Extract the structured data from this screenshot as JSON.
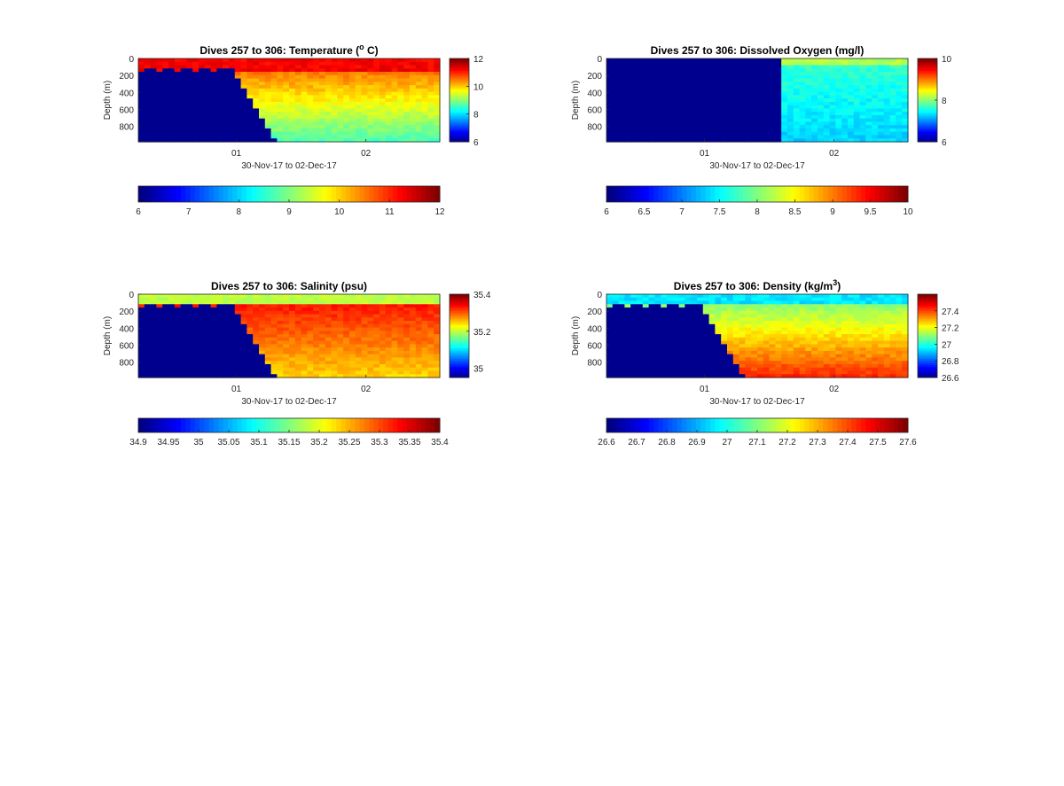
{
  "chart_data": [
    {
      "type": "heatmap",
      "title": "Dives 257 to 306: Temperature (",
      "title_sup": "o",
      "title_suffix": " C)",
      "xlabel": "30-Nov-17 to 02-Dec-17",
      "ylabel": "Depth (m)",
      "x_ticks": [
        "01",
        "02"
      ],
      "y_ticks": [
        0,
        200,
        400,
        600,
        800
      ],
      "ylim": [
        0,
        980
      ],
      "colormap": "jet",
      "side_colorbar": {
        "range": [
          6,
          12
        ],
        "ticks": [
          6,
          8,
          10,
          12
        ]
      },
      "bottom_colorbar": {
        "range": [
          6,
          12
        ],
        "ticks": [
          "6",
          "7",
          "8",
          "9",
          "10",
          "11",
          "12"
        ]
      },
      "field": {
        "surface": 11.3,
        "subsurface": 10.6,
        "deep": 8.6,
        "surface_depth": 120,
        "no_data_mask": "left"
      }
    },
    {
      "type": "heatmap",
      "title": "Dives 257 to 306: Dissolved Oxygen (mg/l)",
      "xlabel": "30-Nov-17 to 02-Dec-17",
      "ylabel": "Depth (m)",
      "x_ticks": [
        "01",
        "02"
      ],
      "y_ticks": [
        0,
        200,
        400,
        600,
        800
      ],
      "ylim": [
        0,
        980
      ],
      "colormap": "jet",
      "side_colorbar": {
        "range": [
          6,
          10
        ],
        "ticks": [
          6,
          8,
          10
        ]
      },
      "bottom_colorbar": {
        "range": [
          6,
          10
        ],
        "ticks": [
          "6",
          "6.5",
          "7",
          "7.5",
          "8",
          "8.5",
          "9",
          "9.5",
          "10"
        ]
      },
      "field": {
        "surface": 8.2,
        "subsurface": 7.7,
        "deep": 7.3,
        "surface_depth": 60,
        "no_data_mask": "half"
      }
    },
    {
      "type": "heatmap",
      "title": "Dives 257 to 306: Salinity (psu)",
      "xlabel": "30-Nov-17 to 02-Dec-17",
      "ylabel": "Depth (m)",
      "x_ticks": [
        "01",
        "02"
      ],
      "y_ticks": [
        0,
        200,
        400,
        600,
        800
      ],
      "ylim": [
        0,
        980
      ],
      "colormap": "jet",
      "side_colorbar": {
        "range": [
          34.95,
          35.4
        ],
        "ticks": [
          35,
          35.2,
          35.4
        ]
      },
      "bottom_colorbar": {
        "range": [
          34.9,
          35.4
        ],
        "ticks": [
          "34.9",
          "34.95",
          "35",
          "35.05",
          "35.1",
          "35.15",
          "35.2",
          "35.25",
          "35.3",
          "35.35",
          "35.4"
        ]
      },
      "field": {
        "surface": 35.18,
        "subsurface": 35.33,
        "deep": 35.23,
        "surface_depth": 80,
        "no_data_mask": "left"
      }
    },
    {
      "type": "heatmap",
      "title": "Dives 257 to 306: Density (kg/m",
      "title_sup": "3",
      "title_suffix": ")",
      "xlabel": "30-Nov-17 to 02-Dec-17",
      "ylabel": "Depth (m)",
      "x_ticks": [
        "01",
        "02"
      ],
      "y_ticks": [
        0,
        200,
        400,
        600,
        800
      ],
      "ylim": [
        0,
        980
      ],
      "colormap": "jet",
      "side_colorbar": {
        "range": [
          26.6,
          27.6
        ],
        "ticks": [
          26.6,
          26.8,
          27,
          27.2,
          27.4
        ]
      },
      "bottom_colorbar": {
        "range": [
          26.6,
          27.6
        ],
        "ticks": [
          "26.6",
          "26.7",
          "26.8",
          "26.9",
          "27",
          "27.1",
          "27.2",
          "27.3",
          "27.4",
          "27.5",
          "27.6"
        ]
      },
      "field": {
        "surface": 26.95,
        "subsurface": 27.1,
        "deep": 27.45,
        "surface_depth": 80,
        "no_data_mask": "left"
      }
    }
  ]
}
